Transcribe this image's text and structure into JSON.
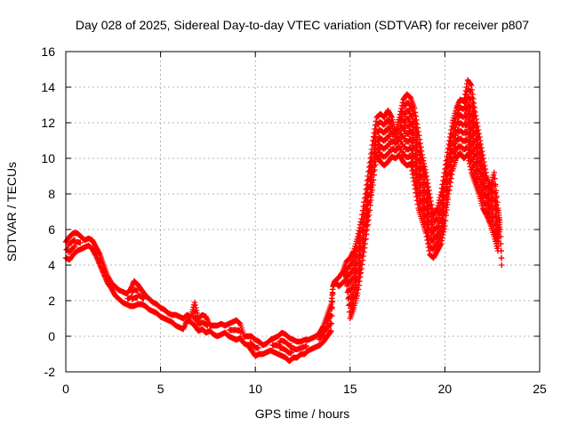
{
  "chart_data": {
    "type": "scatter",
    "title": "Day 028 of 2025, Sidereal Day-to-day VTEC variation (SDTVAR) for receiver p807",
    "xlabel": "GPS time / hours",
    "ylabel": "SDTVAR / TECUs",
    "xlim": [
      0,
      25
    ],
    "ylim": [
      -2,
      16
    ],
    "xticks": [
      0,
      5,
      10,
      15,
      20,
      25
    ],
    "yticks": [
      -2,
      0,
      2,
      4,
      6,
      8,
      10,
      12,
      14,
      16
    ],
    "xtick_labels": [
      "0",
      "5",
      "10",
      "15",
      "20",
      "25"
    ],
    "ytick_labels": [
      "-2",
      "0",
      "2",
      "4",
      "6",
      "8",
      "10",
      "12",
      "14",
      "16"
    ],
    "grid": true,
    "marker": "+",
    "series_color": "#ff0000",
    "series": [
      {
        "name": "SDTVAR",
        "note": "dense '+' markers; values sampled along the visible point cloud (min/max envelope per time)",
        "points": [
          [
            0.0,
            5.3
          ],
          [
            0.0,
            4.4
          ],
          [
            0.2,
            5.6
          ],
          [
            0.2,
            4.3
          ],
          [
            0.4,
            5.8
          ],
          [
            0.4,
            4.6
          ],
          [
            0.6,
            5.8
          ],
          [
            0.6,
            4.8
          ],
          [
            0.8,
            5.6
          ],
          [
            0.8,
            4.9
          ],
          [
            1.0,
            5.4
          ],
          [
            1.0,
            5.0
          ],
          [
            1.2,
            5.5
          ],
          [
            1.2,
            5.1
          ],
          [
            1.4,
            5.4
          ],
          [
            1.4,
            4.9
          ],
          [
            1.6,
            5.0
          ],
          [
            1.6,
            4.5
          ],
          [
            1.8,
            4.6
          ],
          [
            1.8,
            4.0
          ],
          [
            2.0,
            4.0
          ],
          [
            2.0,
            3.5
          ],
          [
            2.2,
            3.4
          ],
          [
            2.2,
            3.0
          ],
          [
            2.4,
            3.0
          ],
          [
            2.4,
            2.7
          ],
          [
            2.6,
            2.8
          ],
          [
            2.6,
            2.3
          ],
          [
            2.8,
            2.6
          ],
          [
            2.8,
            2.1
          ],
          [
            3.0,
            2.5
          ],
          [
            3.0,
            1.9
          ],
          [
            3.2,
            2.4
          ],
          [
            3.2,
            1.8
          ],
          [
            3.4,
            2.6
          ],
          [
            3.4,
            1.7
          ],
          [
            3.6,
            3.1
          ],
          [
            3.6,
            1.7
          ],
          [
            3.8,
            2.9
          ],
          [
            3.8,
            1.8
          ],
          [
            4.0,
            2.6
          ],
          [
            4.0,
            1.8
          ],
          [
            4.2,
            2.3
          ],
          [
            4.2,
            1.7
          ],
          [
            4.4,
            2.1
          ],
          [
            4.4,
            1.5
          ],
          [
            4.6,
            1.9
          ],
          [
            4.6,
            1.4
          ],
          [
            4.8,
            1.8
          ],
          [
            4.8,
            1.3
          ],
          [
            5.0,
            1.6
          ],
          [
            5.0,
            1.1
          ],
          [
            5.2,
            1.5
          ],
          [
            5.2,
            1.0
          ],
          [
            5.4,
            1.3
          ],
          [
            5.4,
            0.9
          ],
          [
            5.6,
            1.2
          ],
          [
            5.6,
            0.8
          ],
          [
            5.8,
            1.2
          ],
          [
            5.8,
            0.6
          ],
          [
            6.0,
            1.1
          ],
          [
            6.0,
            0.5
          ],
          [
            6.2,
            1.0
          ],
          [
            6.2,
            0.4
          ],
          [
            6.4,
            1.2
          ],
          [
            6.4,
            0.9
          ],
          [
            6.6,
            1.1
          ],
          [
            6.6,
            0.8
          ],
          [
            6.8,
            1.9
          ],
          [
            6.8,
            0.6
          ],
          [
            7.0,
            1.0
          ],
          [
            7.0,
            0.3
          ],
          [
            7.2,
            1.2
          ],
          [
            7.2,
            0.4
          ],
          [
            7.4,
            1.1
          ],
          [
            7.4,
            0.2
          ],
          [
            7.6,
            0.6
          ],
          [
            7.6,
            0.3
          ],
          [
            7.8,
            0.6
          ],
          [
            7.8,
            0.1
          ],
          [
            8.0,
            0.6
          ],
          [
            8.0,
            0.0
          ],
          [
            8.2,
            0.7
          ],
          [
            8.2,
            0.1
          ],
          [
            8.4,
            0.6
          ],
          [
            8.4,
            0.2
          ],
          [
            8.6,
            0.7
          ],
          [
            8.6,
            0.0
          ],
          [
            8.8,
            0.8
          ],
          [
            8.8,
            -0.1
          ],
          [
            9.0,
            0.9
          ],
          [
            9.0,
            -0.2
          ],
          [
            9.2,
            0.7
          ],
          [
            9.2,
            -0.1
          ],
          [
            9.4,
            0.0
          ],
          [
            9.4,
            -0.4
          ],
          [
            9.6,
            0.0
          ],
          [
            9.6,
            -0.5
          ],
          [
            9.8,
            0.0
          ],
          [
            9.8,
            -0.8
          ],
          [
            10.0,
            -0.2
          ],
          [
            10.0,
            -1.1
          ],
          [
            10.2,
            -0.3
          ],
          [
            10.2,
            -1.0
          ],
          [
            10.4,
            -0.5
          ],
          [
            10.4,
            -1.0
          ],
          [
            10.6,
            -0.4
          ],
          [
            10.6,
            -0.9
          ],
          [
            10.8,
            -0.2
          ],
          [
            10.8,
            -0.8
          ],
          [
            11.0,
            -0.1
          ],
          [
            11.0,
            -0.9
          ],
          [
            11.2,
            0.0
          ],
          [
            11.2,
            -1.0
          ],
          [
            11.4,
            0.2
          ],
          [
            11.4,
            -1.1
          ],
          [
            11.6,
            0.1
          ],
          [
            11.6,
            -1.2
          ],
          [
            11.8,
            -0.1
          ],
          [
            11.8,
            -1.4
          ],
          [
            12.0,
            -0.2
          ],
          [
            12.0,
            -1.2
          ],
          [
            12.2,
            -0.3
          ],
          [
            12.2,
            -1.2
          ],
          [
            12.4,
            -0.3
          ],
          [
            12.4,
            -1.0
          ],
          [
            12.6,
            -0.2
          ],
          [
            12.6,
            -1.0
          ],
          [
            12.8,
            -0.2
          ],
          [
            12.8,
            -0.8
          ],
          [
            13.0,
            -0.1
          ],
          [
            13.0,
            -0.7
          ],
          [
            13.2,
            0.0
          ],
          [
            13.2,
            -0.6
          ],
          [
            13.4,
            0.2
          ],
          [
            13.4,
            -0.5
          ],
          [
            13.6,
            0.6
          ],
          [
            13.6,
            -0.3
          ],
          [
            13.8,
            1.2
          ],
          [
            13.8,
            0.0
          ],
          [
            14.0,
            1.8
          ],
          [
            14.0,
            0.3
          ],
          [
            14.1,
            2.8
          ],
          [
            14.2,
            3.1
          ],
          [
            14.4,
            3.3
          ],
          [
            14.4,
            2.8
          ],
          [
            14.6,
            3.6
          ],
          [
            14.6,
            3.0
          ],
          [
            14.8,
            4.2
          ],
          [
            14.8,
            3.2
          ],
          [
            15.0,
            4.4
          ],
          [
            15.0,
            1.0
          ],
          [
            15.2,
            4.8
          ],
          [
            15.2,
            1.6
          ],
          [
            15.4,
            5.6
          ],
          [
            15.4,
            2.4
          ],
          [
            15.6,
            6.6
          ],
          [
            15.6,
            3.8
          ],
          [
            15.8,
            8.0
          ],
          [
            15.8,
            5.2
          ],
          [
            16.0,
            9.5
          ],
          [
            16.0,
            6.8
          ],
          [
            16.2,
            11.0
          ],
          [
            16.2,
            8.5
          ],
          [
            16.4,
            12.3
          ],
          [
            16.4,
            10.2
          ],
          [
            16.6,
            12.5
          ],
          [
            16.6,
            9.8
          ],
          [
            16.8,
            12.3
          ],
          [
            16.8,
            9.6
          ],
          [
            17.0,
            12.7
          ],
          [
            17.0,
            9.8
          ],
          [
            17.2,
            12.3
          ],
          [
            17.2,
            10.1
          ],
          [
            17.4,
            11.5
          ],
          [
            17.4,
            10.0
          ],
          [
            17.6,
            12.3
          ],
          [
            17.6,
            10.2
          ],
          [
            17.8,
            13.3
          ],
          [
            17.8,
            9.8
          ],
          [
            18.0,
            13.6
          ],
          [
            18.0,
            9.6
          ],
          [
            18.2,
            13.4
          ],
          [
            18.2,
            9.7
          ],
          [
            18.4,
            12.8
          ],
          [
            18.4,
            8.5
          ],
          [
            18.6,
            11.5
          ],
          [
            18.6,
            7.2
          ],
          [
            18.8,
            10.2
          ],
          [
            18.8,
            6.5
          ],
          [
            19.0,
            9.2
          ],
          [
            19.0,
            5.8
          ],
          [
            19.2,
            8.0
          ],
          [
            19.2,
            4.6
          ],
          [
            19.4,
            6.8
          ],
          [
            19.4,
            4.4
          ],
          [
            19.6,
            7.2
          ],
          [
            19.6,
            4.8
          ],
          [
            19.8,
            8.1
          ],
          [
            19.8,
            5.2
          ],
          [
            20.0,
            9.4
          ],
          [
            20.0,
            6.2
          ],
          [
            20.2,
            10.8
          ],
          [
            20.2,
            8.0
          ],
          [
            20.4,
            12.0
          ],
          [
            20.4,
            9.3
          ],
          [
            20.6,
            12.8
          ],
          [
            20.6,
            10.0
          ],
          [
            20.8,
            13.3
          ],
          [
            20.8,
            10.3
          ],
          [
            21.0,
            13.2
          ],
          [
            21.0,
            10.0
          ],
          [
            21.2,
            14.4
          ],
          [
            21.2,
            10.2
          ],
          [
            21.4,
            14.1
          ],
          [
            21.4,
            9.2
          ],
          [
            21.6,
            12.6
          ],
          [
            21.6,
            8.6
          ],
          [
            21.8,
            11.4
          ],
          [
            21.8,
            8.0
          ],
          [
            22.0,
            10.2
          ],
          [
            22.0,
            7.2
          ],
          [
            22.2,
            9.0
          ],
          [
            22.2,
            6.8
          ],
          [
            22.4,
            8.4
          ],
          [
            22.4,
            6.3
          ],
          [
            22.6,
            9.2
          ],
          [
            22.6,
            5.6
          ],
          [
            22.8,
            7.2
          ],
          [
            22.8,
            4.8
          ],
          [
            22.9,
            6.4
          ],
          [
            23.0,
            4.0
          ]
        ]
      }
    ]
  }
}
